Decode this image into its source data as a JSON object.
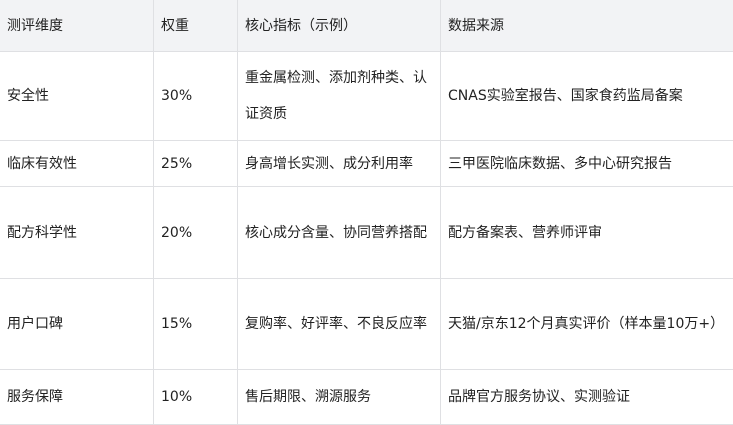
{
  "table": {
    "headers": [
      "测评维度",
      "权重",
      "核心指标（示例）",
      "数据来源"
    ],
    "rows": [
      [
        "安全性",
        "30%",
        "重金属检测、添加剂种类、认证资质",
        "CNAS实验室报告、国家食药监局备案"
      ],
      [
        "临床有效性",
        "25%",
        "身高增长实测、成分利用率",
        "三甲医院临床数据、多中心研究报告"
      ],
      [
        "配方科学性",
        "20%",
        "核心成分含量、协同营养搭配",
        "配方备案表、营养师评审"
      ],
      [
        "用户口碑",
        "15%",
        "复购率、好评率、不良反应率",
        "天猫/京东12个月真实评价（样本量10万+）"
      ],
      [
        "服务保障",
        "10%",
        "售后期限、溯源服务",
        "品牌官方服务协议、实测验证"
      ]
    ]
  }
}
